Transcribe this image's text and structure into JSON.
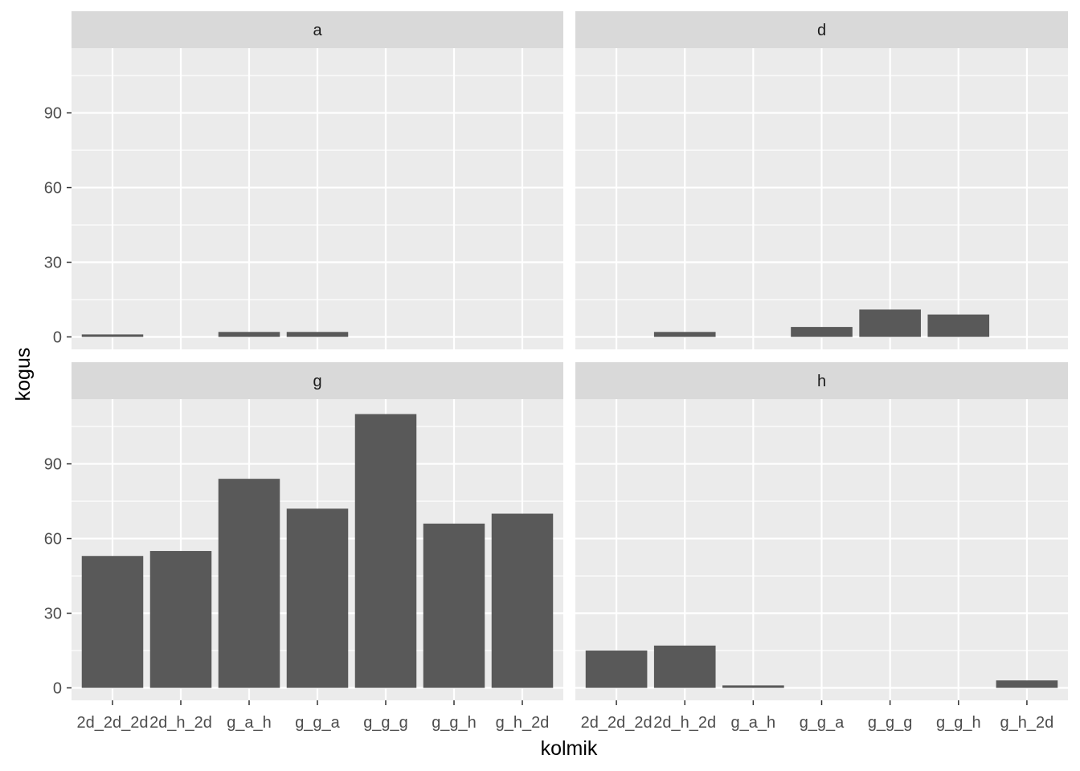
{
  "chart_data": {
    "type": "bar",
    "xlabel": "kolmik",
    "ylabel": "kogus",
    "categories": [
      "2d_2d_2d",
      "2d_h_2d",
      "g_a_h",
      "g_g_a",
      "g_g_g",
      "g_g_h",
      "g_h_2d"
    ],
    "y_ticks": [
      0,
      30,
      60,
      90
    ],
    "ylim": [
      -5,
      116
    ],
    "bar_color": "#595959",
    "panel_background": "#ebebeb",
    "strip_background": "#d9d9d9",
    "grid_color": "#ffffff",
    "grid": true,
    "panels": [
      {
        "label": "a",
        "values": [
          1,
          null,
          2,
          2,
          null,
          null,
          null
        ]
      },
      {
        "label": "d",
        "values": [
          null,
          2,
          null,
          4,
          11,
          9,
          null
        ]
      },
      {
        "label": "g",
        "values": [
          53,
          55,
          84,
          72,
          110,
          66,
          70
        ]
      },
      {
        "label": "h",
        "values": [
          15,
          17,
          1,
          null,
          null,
          null,
          3
        ]
      }
    ]
  }
}
